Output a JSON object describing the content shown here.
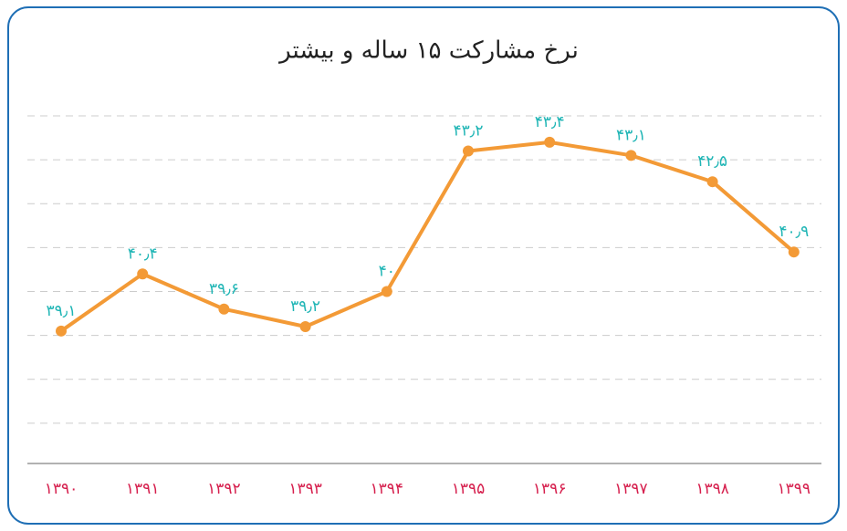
{
  "chart_data": {
    "type": "line",
    "title": "نرخ مشارکت ۱۵ ساله و بیشتر",
    "categories": [
      "۱۳۹۰",
      "۱۳۹۱",
      "۱۳۹۲",
      "۱۳۹۳",
      "۱۳۹۴",
      "۱۳۹۵",
      "۱۳۹۶",
      "۱۳۹۷",
      "۱۳۹۸",
      "۱۳۹۹"
    ],
    "series": [
      {
        "color": "#f39a36",
        "values": [
          39.1,
          40.4,
          39.6,
          39.2,
          40,
          43.2,
          43.4,
          43.1,
          42.5,
          40.9
        ],
        "value_labels": [
          "۳۹٫۱",
          "۴۰٫۴",
          "۳۹٫۶",
          "۳۹٫۲",
          "۴۰",
          "۴۳٫۲",
          "۴۳٫۴",
          "۴۳٫۱",
          "۴۲٫۵",
          "۴۰٫۹"
        ]
      }
    ],
    "ylim": [
      36,
      44
    ],
    "yticks": [
      37,
      38,
      39,
      40,
      41,
      42,
      43,
      44
    ],
    "grid": true
  }
}
